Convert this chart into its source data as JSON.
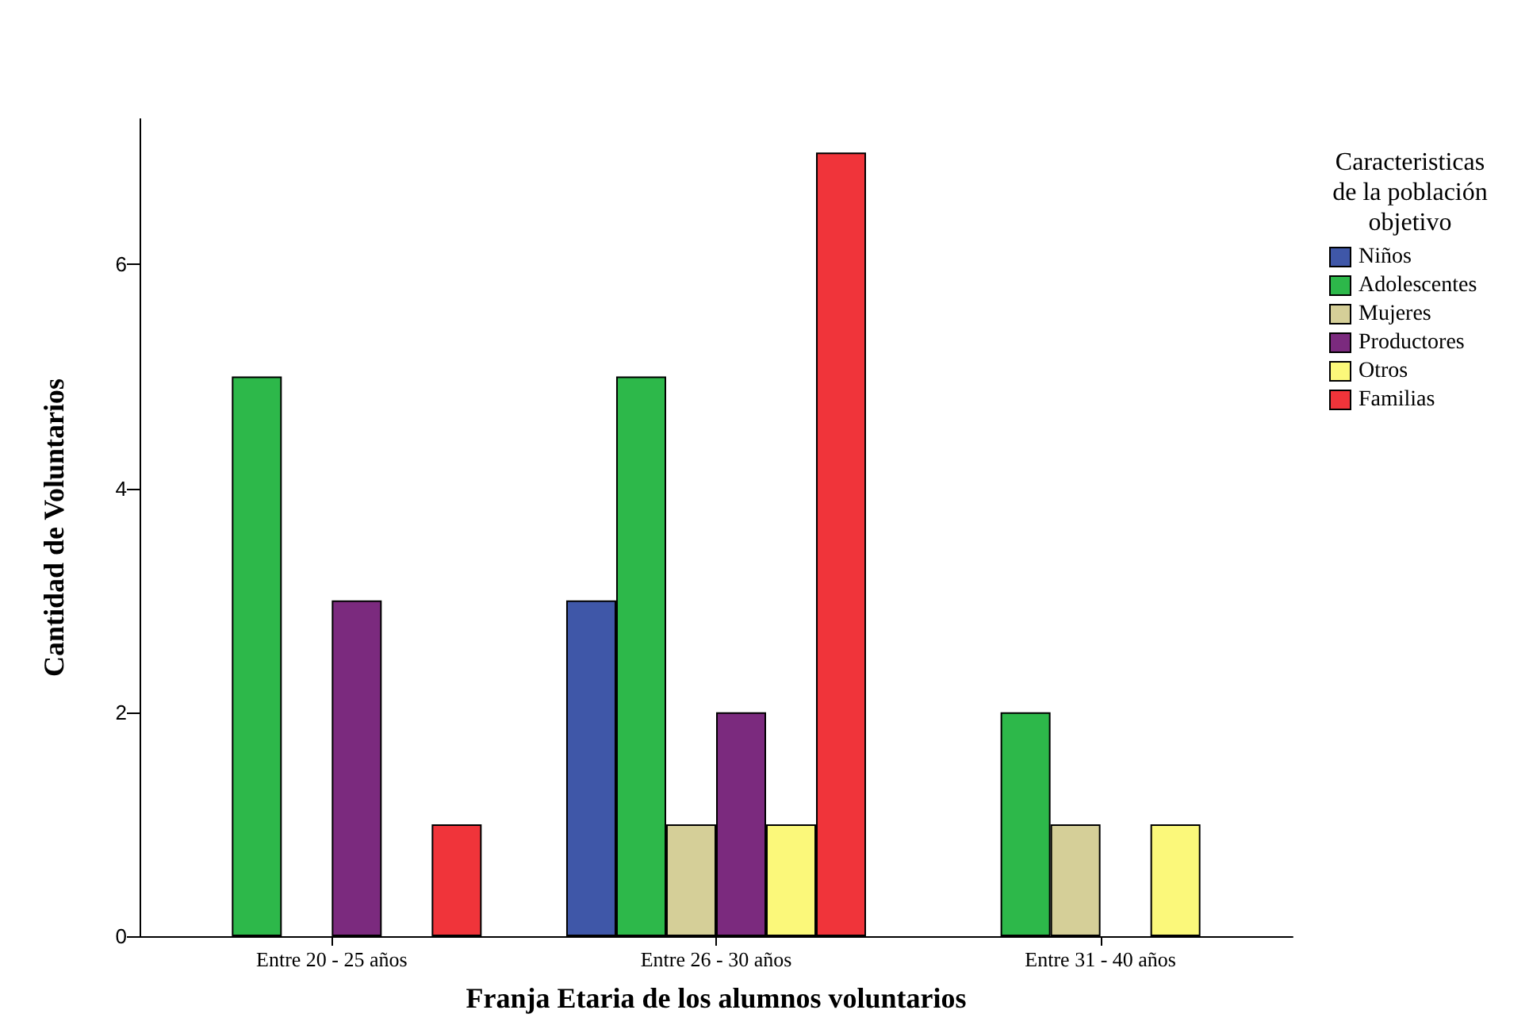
{
  "chart_data": {
    "type": "bar",
    "xlabel": "Franja Etaria de los alumnos voluntarios",
    "ylabel": "Cantidad de Voluntarios",
    "legend_title": "Caracteristicas\nde la población\nobjetivo",
    "categories": [
      "Entre 20 - 25 años",
      "Entre 26 - 30 años",
      "Entre 31 - 40 años"
    ],
    "series": [
      {
        "name": "Niños",
        "color": "#3f57a8",
        "values": [
          null,
          3,
          null
        ]
      },
      {
        "name": "Adolescentes",
        "color": "#2db84a",
        "values": [
          5,
          5,
          2
        ]
      },
      {
        "name": "Mujeres",
        "color": "#d5cf98",
        "values": [
          null,
          1,
          1
        ]
      },
      {
        "name": "Productores",
        "color": "#7b2a7e",
        "values": [
          3,
          2,
          null
        ]
      },
      {
        "name": "Otros",
        "color": "#fbf87a",
        "values": [
          null,
          1,
          1
        ]
      },
      {
        "name": "Familias",
        "color": "#f0343a",
        "values": [
          1,
          7,
          null
        ]
      }
    ],
    "ylim": [
      0,
      7.3
    ],
    "yticks": [
      0,
      2,
      4,
      6
    ],
    "grid": false,
    "legend": "right"
  }
}
